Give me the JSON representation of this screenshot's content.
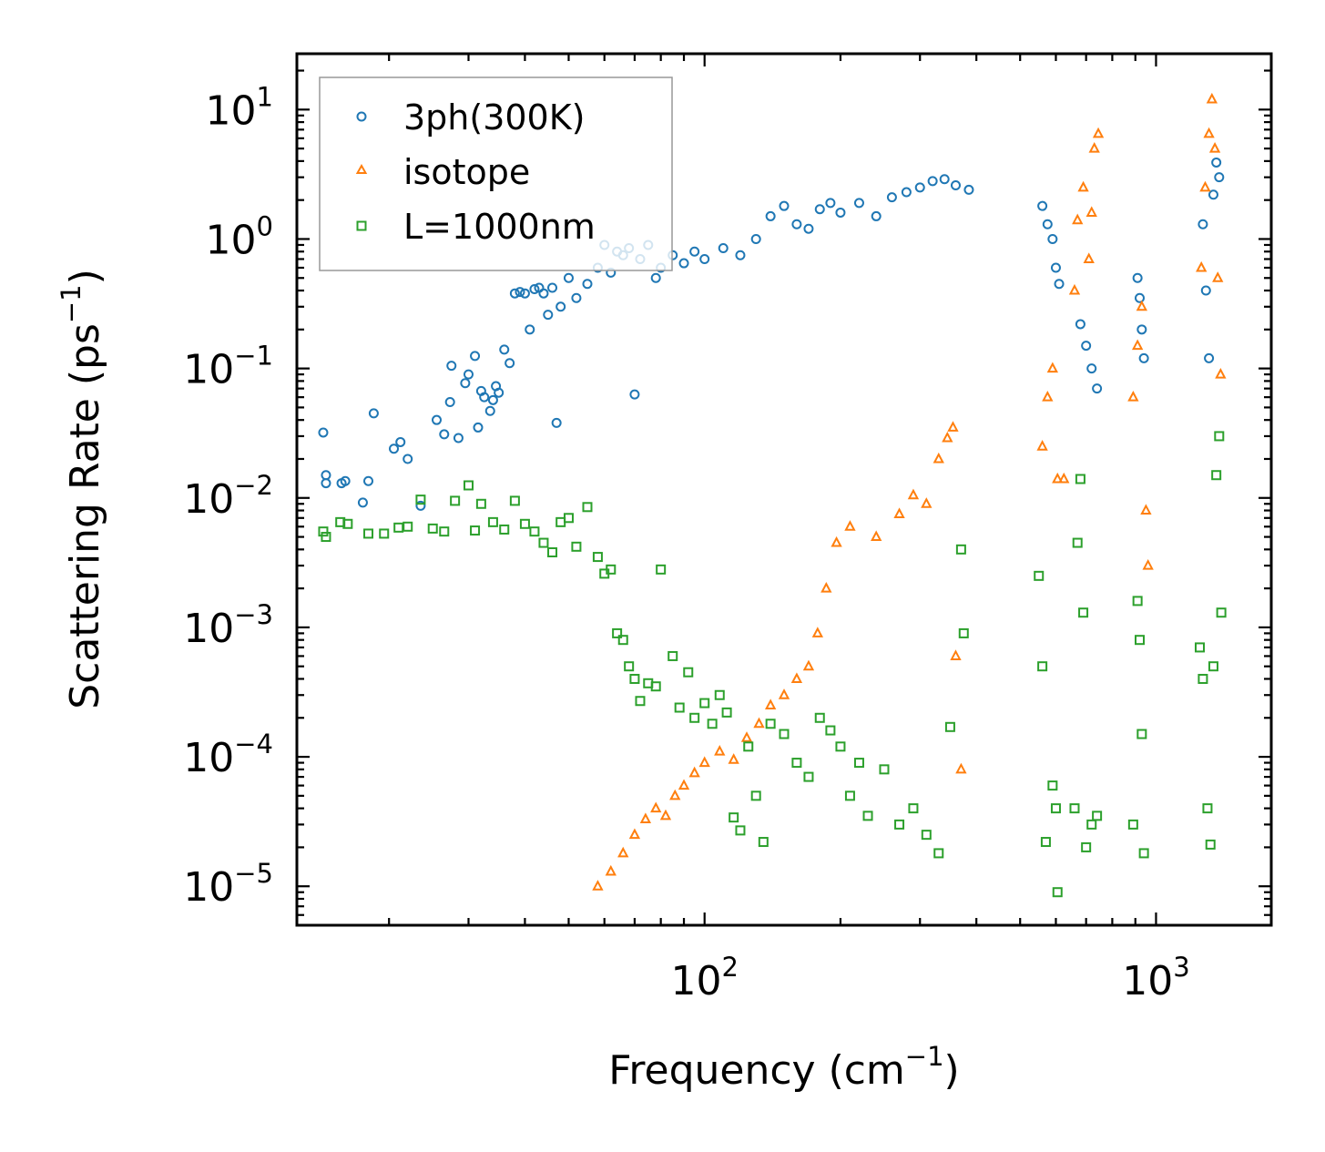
{
  "chart_data": {
    "type": "scatter",
    "title": "",
    "xlabel": "Frequency (cm",
    "xlabel_sup": "−1",
    "xlabel_close": ")",
    "ylabel": "Scattering Rate (ps",
    "ylabel_sup": "−1",
    "ylabel_close": ")",
    "xscale": "log",
    "yscale": "log",
    "xlim": [
      12.5,
      1800
    ],
    "ylim": [
      5e-06,
      27
    ],
    "x_ticks": [
      {
        "value": 100,
        "base": "10",
        "exp": "2"
      },
      {
        "value": 1000,
        "base": "10",
        "exp": "3"
      }
    ],
    "y_ticks": [
      {
        "value": 10,
        "base": "10",
        "exp": "1"
      },
      {
        "value": 1,
        "base": "10",
        "exp": "0"
      },
      {
        "value": 0.1,
        "base": "10",
        "exp": "−1"
      },
      {
        "value": 0.01,
        "base": "10",
        "exp": "−2"
      },
      {
        "value": 0.001,
        "base": "10",
        "exp": "−3"
      },
      {
        "value": 0.0001,
        "base": "10",
        "exp": "−4"
      },
      {
        "value": 1e-05,
        "base": "10",
        "exp": "−5"
      }
    ],
    "legend_position": "upper-left",
    "grid": false,
    "series": [
      {
        "name": "3ph(300K)",
        "marker": "circle",
        "color": "#1f77b4",
        "points": [
          [
            14.3,
            0.032
          ],
          [
            14.5,
            0.015
          ],
          [
            14.5,
            0.013
          ],
          [
            15.7,
            0.013
          ],
          [
            16,
            0.0135
          ],
          [
            17.5,
            0.0092
          ],
          [
            18,
            0.0135
          ],
          [
            18.5,
            0.045
          ],
          [
            20.5,
            0.024
          ],
          [
            21.2,
            0.027
          ],
          [
            22,
            0.02
          ],
          [
            23.5,
            0.0087
          ],
          [
            25.5,
            0.04
          ],
          [
            26.5,
            0.031
          ],
          [
            27.3,
            0.055
          ],
          [
            27.5,
            0.105
          ],
          [
            28.5,
            0.029
          ],
          [
            29.5,
            0.077
          ],
          [
            30,
            0.09
          ],
          [
            31,
            0.125
          ],
          [
            31.5,
            0.035
          ],
          [
            32,
            0.067
          ],
          [
            32.5,
            0.06
          ],
          [
            33.5,
            0.047
          ],
          [
            34,
            0.057
          ],
          [
            34.5,
            0.073
          ],
          [
            35,
            0.065
          ],
          [
            36,
            0.14
          ],
          [
            37,
            0.11
          ],
          [
            38,
            0.38
          ],
          [
            39,
            0.39
          ],
          [
            40,
            0.38
          ],
          [
            41,
            0.2
          ],
          [
            42,
            0.41
          ],
          [
            43,
            0.42
          ],
          [
            44,
            0.38
          ],
          [
            45,
            0.26
          ],
          [
            46,
            0.42
          ],
          [
            47,
            0.038
          ],
          [
            48,
            0.3
          ],
          [
            50,
            0.5
          ],
          [
            52,
            0.35
          ],
          [
            55,
            0.45
          ],
          [
            58,
            0.6
          ],
          [
            60,
            0.9
          ],
          [
            62,
            0.55
          ],
          [
            64,
            0.8
          ],
          [
            66,
            0.75
          ],
          [
            68,
            0.85
          ],
          [
            70,
            0.063
          ],
          [
            72,
            0.7
          ],
          [
            75,
            0.9
          ],
          [
            78,
            0.5
          ],
          [
            80,
            0.6
          ],
          [
            85,
            0.75
          ],
          [
            90,
            0.65
          ],
          [
            95,
            0.8
          ],
          [
            100,
            0.7
          ],
          [
            110,
            0.85
          ],
          [
            120,
            0.75
          ],
          [
            130,
            1.0
          ],
          [
            140,
            1.5
          ],
          [
            150,
            1.8
          ],
          [
            160,
            1.3
          ],
          [
            170,
            1.2
          ],
          [
            180,
            1.7
          ],
          [
            190,
            1.9
          ],
          [
            200,
            1.6
          ],
          [
            220,
            1.9
          ],
          [
            240,
            1.5
          ],
          [
            260,
            2.1
          ],
          [
            280,
            2.3
          ],
          [
            300,
            2.5
          ],
          [
            320,
            2.8
          ],
          [
            340,
            2.9
          ],
          [
            360,
            2.6
          ],
          [
            385,
            2.4
          ],
          [
            560,
            1.8
          ],
          [
            575,
            1.3
          ],
          [
            590,
            1.0
          ],
          [
            600,
            0.6
          ],
          [
            610,
            0.45
          ],
          [
            680,
            0.22
          ],
          [
            700,
            0.15
          ],
          [
            720,
            0.1
          ],
          [
            740,
            0.07
          ],
          [
            910,
            0.5
          ],
          [
            920,
            0.35
          ],
          [
            930,
            0.2
          ],
          [
            940,
            0.12
          ],
          [
            1270,
            1.3
          ],
          [
            1290,
            0.4
          ],
          [
            1310,
            0.12
          ],
          [
            1340,
            2.2
          ],
          [
            1360,
            3.9
          ],
          [
            1380,
            3.0
          ]
        ]
      },
      {
        "name": "isotope",
        "marker": "triangle",
        "color": "#ff7f0e",
        "points": [
          [
            58,
            1e-05
          ],
          [
            62,
            1.3e-05
          ],
          [
            66,
            1.8e-05
          ],
          [
            70,
            2.5e-05
          ],
          [
            74,
            3.3e-05
          ],
          [
            78,
            4e-05
          ],
          [
            82,
            3.5e-05
          ],
          [
            86,
            5e-05
          ],
          [
            90,
            6e-05
          ],
          [
            95,
            7.5e-05
          ],
          [
            100,
            9e-05
          ],
          [
            108,
            0.00011
          ],
          [
            116,
            9.5e-05
          ],
          [
            124,
            0.00014
          ],
          [
            132,
            0.00018
          ],
          [
            140,
            0.00025
          ],
          [
            150,
            0.0003
          ],
          [
            160,
            0.0004
          ],
          [
            170,
            0.0005
          ],
          [
            178,
            0.0009
          ],
          [
            186,
            0.002
          ],
          [
            196,
            0.0045
          ],
          [
            210,
            0.006
          ],
          [
            240,
            0.005
          ],
          [
            270,
            0.0075
          ],
          [
            290,
            0.0105
          ],
          [
            310,
            0.009
          ],
          [
            330,
            0.02
          ],
          [
            345,
            0.029
          ],
          [
            355,
            0.035
          ],
          [
            360,
            0.0006
          ],
          [
            370,
            8e-05
          ],
          [
            560,
            0.025
          ],
          [
            575,
            0.06
          ],
          [
            590,
            0.1
          ],
          [
            605,
            0.014
          ],
          [
            625,
            0.014
          ],
          [
            660,
            0.4
          ],
          [
            670,
            1.4
          ],
          [
            690,
            2.5
          ],
          [
            710,
            0.7
          ],
          [
            720,
            1.6
          ],
          [
            730,
            5.0
          ],
          [
            745,
            6.5
          ],
          [
            890,
            0.06
          ],
          [
            910,
            0.15
          ],
          [
            930,
            0.3
          ],
          [
            950,
            0.008
          ],
          [
            960,
            0.003
          ],
          [
            1260,
            0.6
          ],
          [
            1285,
            2.5
          ],
          [
            1310,
            6.5
          ],
          [
            1330,
            12.0
          ],
          [
            1350,
            5.0
          ],
          [
            1370,
            0.5
          ],
          [
            1390,
            0.09
          ]
        ]
      },
      {
        "name": "L=1000nm",
        "marker": "square",
        "color": "#2ca02c",
        "points": [
          [
            14.3,
            0.0055
          ],
          [
            14.5,
            0.005
          ],
          [
            15.6,
            0.0065
          ],
          [
            16.2,
            0.0063
          ],
          [
            18,
            0.0053
          ],
          [
            19.5,
            0.0053
          ],
          [
            21,
            0.0059
          ],
          [
            22,
            0.006
          ],
          [
            23.5,
            0.0097
          ],
          [
            25,
            0.0058
          ],
          [
            26.5,
            0.0055
          ],
          [
            28,
            0.0095
          ],
          [
            30,
            0.0125
          ],
          [
            31,
            0.0056
          ],
          [
            32,
            0.009
          ],
          [
            34,
            0.0065
          ],
          [
            36,
            0.0057
          ],
          [
            38,
            0.0095
          ],
          [
            40,
            0.0063
          ],
          [
            42,
            0.0055
          ],
          [
            44,
            0.0045
          ],
          [
            46,
            0.0038
          ],
          [
            48,
            0.0065
          ],
          [
            50,
            0.007
          ],
          [
            52,
            0.0042
          ],
          [
            55,
            0.0085
          ],
          [
            58,
            0.0035
          ],
          [
            60,
            0.0026
          ],
          [
            62,
            0.0028
          ],
          [
            64,
            0.0009
          ],
          [
            66,
            0.0008
          ],
          [
            68,
            0.0005
          ],
          [
            70,
            0.0004
          ],
          [
            72,
            0.00027
          ],
          [
            75,
            0.00037
          ],
          [
            78,
            0.00035
          ],
          [
            80,
            0.0028
          ],
          [
            85,
            0.0006
          ],
          [
            88,
            0.00024
          ],
          [
            92,
            0.00045
          ],
          [
            95,
            0.0002
          ],
          [
            100,
            0.00026
          ],
          [
            104,
            0.00018
          ],
          [
            108,
            0.0003
          ],
          [
            112,
            0.00022
          ],
          [
            116,
            3.4e-05
          ],
          [
            120,
            2.7e-05
          ],
          [
            125,
            0.00012
          ],
          [
            130,
            5e-05
          ],
          [
            135,
            2.2e-05
          ],
          [
            140,
            0.00018
          ],
          [
            150,
            0.00015
          ],
          [
            160,
            9e-05
          ],
          [
            170,
            7e-05
          ],
          [
            180,
            0.0002
          ],
          [
            190,
            0.00016
          ],
          [
            200,
            0.00012
          ],
          [
            210,
            5e-05
          ],
          [
            220,
            9e-05
          ],
          [
            230,
            3.5e-05
          ],
          [
            250,
            8e-05
          ],
          [
            270,
            3e-05
          ],
          [
            290,
            4e-05
          ],
          [
            310,
            2.5e-05
          ],
          [
            330,
            1.8e-05
          ],
          [
            350,
            0.00017
          ],
          [
            370,
            0.004
          ],
          [
            375,
            0.0009
          ],
          [
            550,
            0.0025
          ],
          [
            560,
            0.0005
          ],
          [
            570,
            2.2e-05
          ],
          [
            590,
            6e-05
          ],
          [
            600,
            4e-05
          ],
          [
            605,
            9e-06
          ],
          [
            660,
            4e-05
          ],
          [
            670,
            0.0045
          ],
          [
            680,
            0.014
          ],
          [
            690,
            0.0013
          ],
          [
            700,
            2e-05
          ],
          [
            720,
            3e-05
          ],
          [
            740,
            3.5e-05
          ],
          [
            890,
            3e-05
          ],
          [
            910,
            0.0016
          ],
          [
            920,
            0.0008
          ],
          [
            930,
            0.00015
          ],
          [
            940,
            1.8e-05
          ],
          [
            1250,
            0.0007
          ],
          [
            1270,
            0.0004
          ],
          [
            1300,
            4e-05
          ],
          [
            1320,
            2.1e-05
          ],
          [
            1340,
            0.0005
          ],
          [
            1360,
            0.015
          ],
          [
            1380,
            0.03
          ],
          [
            1395,
            0.0013
          ]
        ]
      }
    ]
  }
}
